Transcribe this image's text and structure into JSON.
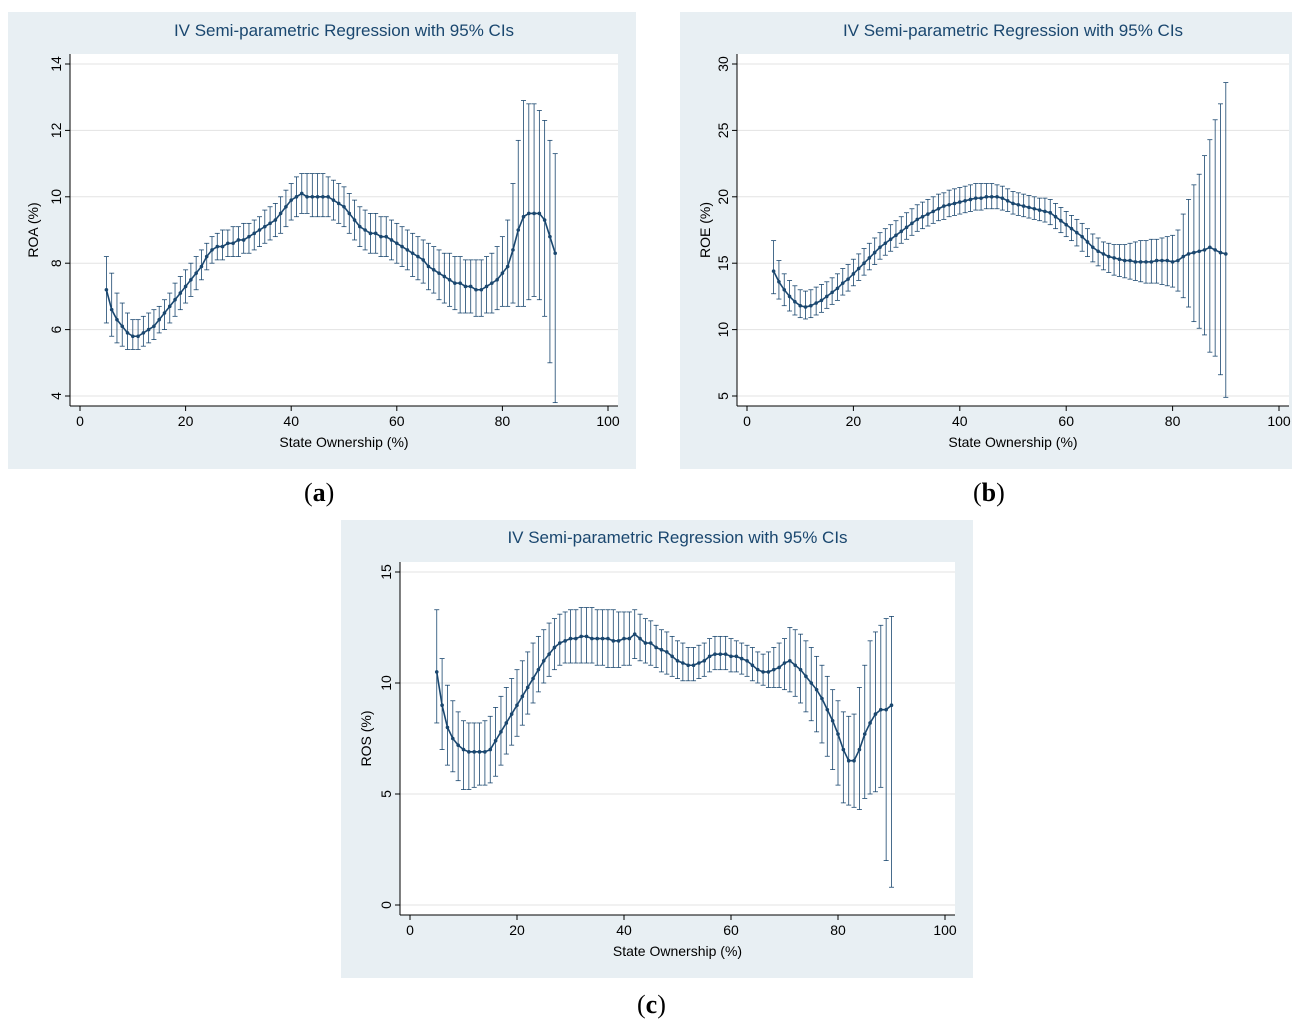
{
  "colors": {
    "panel_bg": "#e8eff3",
    "plot_bg": "#ffffff",
    "series": "#1a476f",
    "grid": "#e3e3e3",
    "axis": "#000000"
  },
  "captions": {
    "a": "a",
    "b": "b",
    "c": "c"
  },
  "chart_data": [
    {
      "type": "line",
      "title": "IV Semi-parametric Regression with 95% CIs",
      "xlabel": "State Ownership (%)",
      "ylabel": "ROA (%)",
      "xlim": [
        0,
        100
      ],
      "ylim": [
        4,
        14
      ],
      "xticks": [
        0,
        20,
        40,
        60,
        80,
        100
      ],
      "yticks": [
        4,
        6,
        8,
        10,
        12,
        14
      ],
      "grid": true,
      "x": [
        5,
        6,
        7,
        8,
        9,
        10,
        11,
        12,
        13,
        14,
        15,
        16,
        17,
        18,
        19,
        20,
        21,
        22,
        23,
        24,
        25,
        26,
        27,
        28,
        29,
        30,
        31,
        32,
        33,
        34,
        35,
        36,
        37,
        38,
        39,
        40,
        41,
        42,
        43,
        44,
        45,
        46,
        47,
        48,
        49,
        50,
        51,
        52,
        53,
        54,
        55,
        56,
        57,
        58,
        59,
        60,
        61,
        62,
        63,
        64,
        65,
        66,
        67,
        68,
        69,
        70,
        71,
        72,
        73,
        74,
        75,
        76,
        77,
        78,
        79,
        80,
        81,
        82,
        83,
        84,
        85,
        86,
        87,
        88,
        89,
        90
      ],
      "series": [
        {
          "values": [
            7.2,
            6.6,
            6.3,
            6.1,
            5.9,
            5.8,
            5.8,
            5.9,
            6.0,
            6.1,
            6.3,
            6.5,
            6.7,
            6.9,
            7.1,
            7.3,
            7.5,
            7.7,
            7.9,
            8.2,
            8.4,
            8.5,
            8.5,
            8.6,
            8.6,
            8.7,
            8.7,
            8.8,
            8.9,
            9.0,
            9.1,
            9.2,
            9.3,
            9.5,
            9.7,
            9.9,
            10.0,
            10.1,
            10.0,
            10.0,
            10.0,
            10.0,
            10.0,
            9.9,
            9.8,
            9.7,
            9.5,
            9.3,
            9.1,
            9.0,
            8.9,
            8.9,
            8.8,
            8.8,
            8.7,
            8.6,
            8.5,
            8.4,
            8.3,
            8.2,
            8.1,
            7.9,
            7.8,
            7.7,
            7.6,
            7.5,
            7.4,
            7.4,
            7.3,
            7.3,
            7.2,
            7.2,
            7.3,
            7.4,
            7.5,
            7.7,
            7.9,
            8.4,
            9.0,
            9.4,
            9.5,
            9.5,
            9.5,
            9.3,
            8.8,
            8.3
          ],
          "lower": [
            6.2,
            5.8,
            5.6,
            5.5,
            5.4,
            5.4,
            5.4,
            5.5,
            5.6,
            5.7,
            5.9,
            6.0,
            6.2,
            6.4,
            6.6,
            6.8,
            7.0,
            7.2,
            7.5,
            7.8,
            8.0,
            8.1,
            8.1,
            8.2,
            8.2,
            8.2,
            8.3,
            8.3,
            8.4,
            8.5,
            8.6,
            8.7,
            8.8,
            8.9,
            9.1,
            9.3,
            9.4,
            9.5,
            9.5,
            9.4,
            9.4,
            9.4,
            9.4,
            9.3,
            9.2,
            9.1,
            8.9,
            8.7,
            8.5,
            8.4,
            8.3,
            8.3,
            8.2,
            8.2,
            8.1,
            8.0,
            7.9,
            7.8,
            7.6,
            7.5,
            7.4,
            7.2,
            7.1,
            6.9,
            6.8,
            6.7,
            6.6,
            6.5,
            6.5,
            6.5,
            6.4,
            6.4,
            6.5,
            6.5,
            6.6,
            6.7,
            6.7,
            6.8,
            6.7,
            6.7,
            6.9,
            7.0,
            6.9,
            6.4,
            5.0,
            3.8
          ],
          "upper": [
            8.2,
            7.7,
            7.1,
            6.8,
            6.5,
            6.3,
            6.3,
            6.4,
            6.5,
            6.6,
            6.7,
            6.9,
            7.1,
            7.4,
            7.6,
            7.8,
            8.0,
            8.2,
            8.4,
            8.6,
            8.8,
            8.9,
            9.0,
            9.0,
            9.1,
            9.1,
            9.2,
            9.2,
            9.3,
            9.4,
            9.6,
            9.7,
            9.8,
            10.0,
            10.2,
            10.4,
            10.6,
            10.7,
            10.7,
            10.7,
            10.7,
            10.7,
            10.6,
            10.5,
            10.4,
            10.3,
            10.1,
            9.9,
            9.7,
            9.6,
            9.5,
            9.5,
            9.4,
            9.4,
            9.3,
            9.2,
            9.1,
            9.0,
            8.9,
            8.8,
            8.7,
            8.6,
            8.5,
            8.4,
            8.3,
            8.3,
            8.2,
            8.2,
            8.1,
            8.1,
            8.1,
            8.1,
            8.2,
            8.3,
            8.5,
            8.8,
            9.3,
            10.4,
            11.7,
            12.9,
            12.8,
            12.8,
            12.6,
            12.3,
            11.7,
            11.3
          ]
        }
      ]
    },
    {
      "type": "line",
      "title": "IV Semi-parametric Regression with 95% CIs",
      "xlabel": "State Ownership (%)",
      "ylabel": "ROE (%)",
      "xlim": [
        0,
        100
      ],
      "ylim": [
        5,
        30
      ],
      "xticks": [
        0,
        20,
        40,
        60,
        80,
        100
      ],
      "yticks": [
        5,
        10,
        15,
        20,
        25,
        30
      ],
      "grid": true,
      "x": [
        5,
        6,
        7,
        8,
        9,
        10,
        11,
        12,
        13,
        14,
        15,
        16,
        17,
        18,
        19,
        20,
        21,
        22,
        23,
        24,
        25,
        26,
        27,
        28,
        29,
        30,
        31,
        32,
        33,
        34,
        35,
        36,
        37,
        38,
        39,
        40,
        41,
        42,
        43,
        44,
        45,
        46,
        47,
        48,
        49,
        50,
        51,
        52,
        53,
        54,
        55,
        56,
        57,
        58,
        59,
        60,
        61,
        62,
        63,
        64,
        65,
        66,
        67,
        68,
        69,
        70,
        71,
        72,
        73,
        74,
        75,
        76,
        77,
        78,
        79,
        80,
        81,
        82,
        83,
        84,
        85,
        86,
        87,
        88,
        89,
        90
      ],
      "series": [
        {
          "values": [
            14.4,
            13.6,
            13.0,
            12.5,
            12.1,
            11.8,
            11.7,
            11.8,
            12.0,
            12.2,
            12.5,
            12.8,
            13.1,
            13.5,
            13.8,
            14.2,
            14.6,
            15.0,
            15.4,
            15.8,
            16.2,
            16.5,
            16.8,
            17.1,
            17.4,
            17.7,
            18.0,
            18.3,
            18.5,
            18.7,
            18.9,
            19.1,
            19.3,
            19.4,
            19.5,
            19.6,
            19.7,
            19.8,
            19.9,
            19.9,
            20.0,
            20.0,
            20.0,
            19.9,
            19.7,
            19.5,
            19.4,
            19.3,
            19.2,
            19.1,
            19.0,
            18.9,
            18.8,
            18.5,
            18.2,
            17.9,
            17.6,
            17.3,
            17.0,
            16.6,
            16.2,
            15.9,
            15.7,
            15.5,
            15.4,
            15.3,
            15.2,
            15.2,
            15.1,
            15.1,
            15.1,
            15.1,
            15.2,
            15.2,
            15.2,
            15.1,
            15.2,
            15.5,
            15.7,
            15.8,
            15.9,
            16.0,
            16.2,
            16.0,
            15.8,
            15.7
          ],
          "lower": [
            12.7,
            12.3,
            11.8,
            11.4,
            11.1,
            10.9,
            10.8,
            10.9,
            11.1,
            11.3,
            11.6,
            11.9,
            12.2,
            12.6,
            12.9,
            13.3,
            13.7,
            14.1,
            14.5,
            14.9,
            15.3,
            15.6,
            15.9,
            16.2,
            16.5,
            16.8,
            17.1,
            17.4,
            17.6,
            17.8,
            18.0,
            18.2,
            18.3,
            18.5,
            18.6,
            18.7,
            18.8,
            18.9,
            19.0,
            19.0,
            19.1,
            19.1,
            19.1,
            19.0,
            18.9,
            18.7,
            18.6,
            18.5,
            18.4,
            18.3,
            18.2,
            18.1,
            17.9,
            17.6,
            17.3,
            17.0,
            16.7,
            16.3,
            15.9,
            15.5,
            15.1,
            14.8,
            14.5,
            14.3,
            14.1,
            14.0,
            13.9,
            13.8,
            13.7,
            13.6,
            13.5,
            13.5,
            13.5,
            13.4,
            13.3,
            13.2,
            12.9,
            12.4,
            11.7,
            10.6,
            10.1,
            9.6,
            8.3,
            8.0,
            6.6,
            4.9
          ],
          "upper": [
            16.7,
            15.2,
            14.2,
            13.7,
            13.3,
            13.0,
            12.9,
            13.0,
            13.2,
            13.4,
            13.6,
            13.9,
            14.2,
            14.6,
            14.9,
            15.3,
            15.7,
            16.1,
            16.5,
            16.9,
            17.3,
            17.6,
            17.9,
            18.2,
            18.5,
            18.8,
            19.1,
            19.4,
            19.6,
            19.8,
            20.0,
            20.2,
            20.3,
            20.5,
            20.6,
            20.7,
            20.8,
            20.9,
            21.0,
            21.0,
            21.0,
            21.0,
            20.9,
            20.8,
            20.6,
            20.4,
            20.3,
            20.2,
            20.1,
            20.0,
            19.9,
            19.9,
            19.8,
            19.5,
            19.2,
            18.9,
            18.6,
            18.3,
            18.0,
            17.6,
            17.2,
            16.9,
            16.6,
            16.5,
            16.4,
            16.4,
            16.4,
            16.5,
            16.6,
            16.7,
            16.7,
            16.8,
            16.8,
            16.9,
            17.0,
            17.1,
            17.5,
            18.7,
            19.8,
            20.9,
            21.7,
            23.1,
            24.3,
            25.8,
            27.0,
            28.6
          ]
        }
      ]
    },
    {
      "type": "line",
      "title": "IV Semi-parametric Regression with 95% CIs",
      "xlabel": "State Ownership (%)",
      "ylabel": "ROS (%)",
      "xlim": [
        0,
        100
      ],
      "ylim": [
        0,
        15
      ],
      "xticks": [
        0,
        20,
        40,
        60,
        80,
        100
      ],
      "yticks": [
        0,
        5,
        10,
        15
      ],
      "grid": true,
      "x": [
        5,
        6,
        7,
        8,
        9,
        10,
        11,
        12,
        13,
        14,
        15,
        16,
        17,
        18,
        19,
        20,
        21,
        22,
        23,
        24,
        25,
        26,
        27,
        28,
        29,
        30,
        31,
        32,
        33,
        34,
        35,
        36,
        37,
        38,
        39,
        40,
        41,
        42,
        43,
        44,
        45,
        46,
        47,
        48,
        49,
        50,
        51,
        52,
        53,
        54,
        55,
        56,
        57,
        58,
        59,
        60,
        61,
        62,
        63,
        64,
        65,
        66,
        67,
        68,
        69,
        70,
        71,
        72,
        73,
        74,
        75,
        76,
        77,
        78,
        79,
        80,
        81,
        82,
        83,
        84,
        85,
        86,
        87,
        88,
        89,
        90
      ],
      "series": [
        {
          "values": [
            10.5,
            9.0,
            8.0,
            7.5,
            7.2,
            7.0,
            6.9,
            6.9,
            6.9,
            6.9,
            7.0,
            7.4,
            7.8,
            8.2,
            8.6,
            9.0,
            9.4,
            9.8,
            10.2,
            10.6,
            11.0,
            11.3,
            11.6,
            11.8,
            11.9,
            12.0,
            12.0,
            12.1,
            12.1,
            12.0,
            12.0,
            12.0,
            12.0,
            11.9,
            11.9,
            12.0,
            12.0,
            12.2,
            12.0,
            11.8,
            11.8,
            11.6,
            11.5,
            11.4,
            11.2,
            11.0,
            10.9,
            10.8,
            10.8,
            10.9,
            11.0,
            11.2,
            11.3,
            11.3,
            11.3,
            11.2,
            11.2,
            11.1,
            11.0,
            10.8,
            10.6,
            10.5,
            10.5,
            10.6,
            10.7,
            10.9,
            11.0,
            10.8,
            10.6,
            10.3,
            10.0,
            9.7,
            9.3,
            8.8,
            8.3,
            7.7,
            7.0,
            6.5,
            6.5,
            7.0,
            7.7,
            8.2,
            8.6,
            8.8,
            8.8,
            9.0
          ],
          "lower": [
            8.2,
            7.0,
            6.3,
            6.0,
            5.6,
            5.2,
            5.2,
            5.3,
            5.4,
            5.4,
            5.5,
            5.8,
            6.3,
            6.8,
            7.2,
            7.6,
            8.1,
            8.6,
            9.1,
            9.6,
            10.0,
            10.3,
            10.6,
            10.8,
            10.9,
            10.9,
            10.9,
            10.9,
            10.9,
            10.9,
            10.8,
            10.8,
            10.7,
            10.7,
            10.7,
            10.8,
            10.8,
            11.1,
            11.0,
            10.9,
            10.8,
            10.7,
            10.5,
            10.4,
            10.3,
            10.2,
            10.1,
            10.1,
            10.1,
            10.2,
            10.3,
            10.5,
            10.6,
            10.6,
            10.6,
            10.5,
            10.5,
            10.4,
            10.3,
            10.1,
            10.0,
            9.9,
            9.8,
            9.8,
            9.8,
            9.7,
            9.6,
            9.4,
            9.1,
            8.7,
            8.3,
            7.8,
            7.3,
            6.7,
            6.1,
            5.4,
            4.6,
            4.5,
            4.4,
            4.3,
            4.8,
            5.0,
            5.1,
            5.3,
            2.0,
            0.8
          ],
          "upper": [
            13.3,
            11.1,
            9.9,
            9.2,
            8.7,
            8.3,
            8.2,
            8.2,
            8.2,
            8.3,
            8.5,
            8.9,
            9.4,
            9.8,
            10.2,
            10.6,
            11.0,
            11.4,
            11.8,
            12.1,
            12.4,
            12.7,
            12.9,
            13.1,
            13.2,
            13.3,
            13.3,
            13.4,
            13.4,
            13.4,
            13.3,
            13.3,
            13.3,
            13.3,
            13.2,
            13.2,
            13.2,
            13.3,
            13.1,
            12.9,
            12.8,
            12.6,
            12.4,
            12.3,
            12.1,
            11.9,
            11.8,
            11.6,
            11.6,
            11.7,
            11.8,
            12.0,
            12.1,
            12.1,
            12.1,
            12.0,
            11.9,
            11.8,
            11.7,
            11.6,
            11.4,
            11.3,
            11.4,
            11.6,
            11.8,
            12.0,
            12.5,
            12.4,
            12.2,
            11.9,
            11.6,
            11.2,
            10.8,
            10.3,
            9.7,
            9.2,
            8.7,
            8.5,
            8.6,
            9.8,
            10.8,
            11.9,
            12.3,
            12.6,
            12.9,
            13.0
          ]
        }
      ]
    }
  ]
}
